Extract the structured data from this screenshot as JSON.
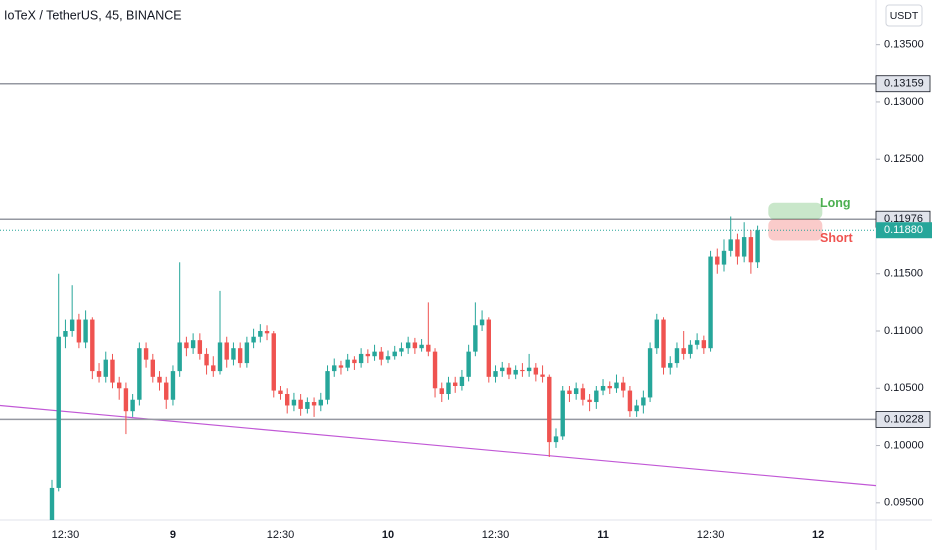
{
  "chart_data": {
    "type": "candlestick",
    "title": "IoTeX / TetherUS, 45, BINANCE",
    "currency": "USDT",
    "up_color": "#26a69a",
    "down_color": "#ef5350",
    "categories": [
      null,
      null,
      "12:30",
      null,
      null,
      null,
      null,
      null,
      null,
      null,
      null,
      null,
      null,
      null,
      null,
      null,
      null,
      null,
      "9",
      null,
      null,
      null,
      null,
      null,
      null,
      null,
      null,
      null,
      null,
      null,
      null,
      null,
      null,
      null,
      "12:30",
      null,
      null,
      null,
      null,
      null,
      null,
      null,
      null,
      null,
      null,
      null,
      null,
      null,
      null,
      null,
      "10",
      null,
      null,
      null,
      null,
      null,
      null,
      null,
      null,
      null,
      null,
      null,
      null,
      null,
      null,
      null,
      "12:30",
      null,
      null,
      null,
      null,
      null,
      null,
      null,
      null,
      null,
      null,
      null,
      null,
      null,
      null,
      null,
      "11",
      null,
      null,
      null,
      null,
      null,
      null,
      null,
      null,
      null,
      null,
      null,
      null,
      null,
      null,
      null,
      "12:30",
      null,
      null,
      null,
      null,
      null,
      null,
      null,
      null,
      null,
      null,
      null,
      null,
      null,
      null,
      null,
      "12",
      null,
      null,
      null,
      null,
      null,
      null,
      null,
      null
    ],
    "open": [
      0.0935,
      0.0963,
      0.1095,
      0.11,
      0.111,
      0.109,
      0.111,
      0.1065,
      0.106,
      0.1075,
      0.1055,
      0.105,
      0.103,
      0.104,
      0.1085,
      0.1075,
      0.106,
      0.1055,
      0.104,
      0.1065,
      0.109,
      0.1085,
      0.1092,
      0.108,
      0.107,
      0.1065,
      0.109,
      0.1075,
      0.1085,
      0.1072,
      0.109,
      0.1095,
      0.11,
      0.1098,
      0.1048,
      0.1045,
      0.1035,
      0.104,
      0.1032,
      0.1038,
      0.1035,
      0.104,
      0.1065,
      0.107,
      0.1068,
      0.1075,
      0.1072,
      0.108,
      0.1078,
      0.1082,
      0.1075,
      0.1078,
      0.1082,
      0.1085,
      0.109,
      0.1085,
      0.1088,
      0.1082,
      0.105,
      0.1045,
      0.1055,
      0.1052,
      0.106,
      0.1082,
      0.1105,
      0.111,
      0.106,
      0.1065,
      0.1068,
      0.1062,
      0.1066,
      0.1065,
      0.1068,
      0.1062,
      0.106,
      0.1003,
      0.1008,
      0.1048,
      0.1045,
      0.105,
      0.104,
      0.1038,
      0.1048,
      0.1052,
      0.105,
      0.1055,
      0.1048,
      0.103,
      0.1035,
      0.1042,
      0.1085,
      0.111,
      0.1068,
      0.1072,
      0.1085,
      0.108,
      0.1088,
      0.1092,
      0.1085,
      0.1165,
      0.1158,
      0.117,
      0.118,
      0.1165,
      0.1182,
      0.116,
      null,
      null,
      null,
      null,
      null,
      null,
      null,
      null,
      null,
      null,
      null,
      null,
      null,
      null,
      null,
      null,
      null
    ],
    "high": [
      0.097,
      0.115,
      0.111,
      0.114,
      0.1115,
      0.1118,
      0.1112,
      0.1072,
      0.1082,
      0.108,
      0.106,
      0.1055,
      0.1045,
      0.109,
      0.109,
      0.108,
      0.1065,
      0.106,
      0.107,
      0.116,
      0.1095,
      0.1098,
      0.1098,
      0.1085,
      0.1078,
      0.1135,
      0.1095,
      0.109,
      0.109,
      0.1095,
      0.1102,
      0.1106,
      0.1105,
      0.11,
      0.1052,
      0.105,
      0.1046,
      0.1045,
      0.1042,
      0.1042,
      0.1046,
      0.107,
      0.1076,
      0.1074,
      0.108,
      0.1078,
      0.1085,
      0.1084,
      0.1088,
      0.1086,
      0.1083,
      0.1087,
      0.109,
      0.1095,
      0.1094,
      0.1093,
      0.1125,
      0.1085,
      0.1055,
      0.106,
      0.106,
      0.1066,
      0.1088,
      0.1125,
      0.1118,
      0.1112,
      0.107,
      0.1073,
      0.1072,
      0.107,
      0.1072,
      0.108,
      0.1072,
      0.107,
      0.1062,
      0.1015,
      0.1052,
      0.1052,
      0.1055,
      0.1054,
      0.1045,
      0.1052,
      0.1058,
      0.1056,
      0.1062,
      0.106,
      0.1052,
      0.104,
      0.1048,
      0.109,
      0.1115,
      0.1112,
      0.1078,
      0.109,
      0.11,
      0.1092,
      0.1098,
      0.1096,
      0.117,
      0.1172,
      0.118,
      0.12,
      0.1185,
      0.1195,
      0.1188,
      0.1192,
      null,
      null,
      null,
      null,
      null,
      null,
      null,
      null,
      null,
      null,
      null,
      null,
      null,
      null,
      null,
      null,
      null
    ],
    "low": [
      0.0928,
      0.096,
      0.1085,
      0.1095,
      0.1085,
      0.1085,
      0.1058,
      0.1055,
      0.1055,
      0.105,
      0.104,
      0.101,
      0.1025,
      0.1035,
      0.1068,
      0.1055,
      0.1048,
      0.1032,
      0.1035,
      0.106,
      0.1078,
      0.108,
      0.1075,
      0.1062,
      0.106,
      0.1062,
      0.1068,
      0.107,
      0.1068,
      0.1068,
      0.1085,
      0.109,
      0.1092,
      0.1042,
      0.104,
      0.1028,
      0.103,
      0.1026,
      0.1028,
      0.1025,
      0.103,
      0.1036,
      0.106,
      0.1062,
      0.1065,
      0.1066,
      0.1068,
      0.1072,
      0.1074,
      0.107,
      0.1072,
      0.1075,
      0.1078,
      0.108,
      0.108,
      0.1082,
      0.1078,
      0.1042,
      0.1038,
      0.104,
      0.1046,
      0.1048,
      0.1056,
      0.1078,
      0.11,
      0.1055,
      0.1055,
      0.106,
      0.1058,
      0.1058,
      0.106,
      0.106,
      0.1056,
      0.1055,
      0.099,
      0.0998,
      0.1005,
      0.1038,
      0.104,
      0.1035,
      0.103,
      0.1032,
      0.1044,
      0.1045,
      0.1046,
      0.1042,
      0.1025,
      0.1025,
      0.1028,
      0.1038,
      0.108,
      0.1062,
      0.1062,
      0.1068,
      0.1075,
      0.1076,
      0.1084,
      0.108,
      0.1082,
      0.115,
      0.1152,
      0.1165,
      0.1158,
      0.116,
      0.115,
      0.1155,
      null,
      null,
      null,
      null,
      null,
      null,
      null,
      null,
      null,
      null,
      null,
      null,
      null,
      null,
      null,
      null,
      null
    ],
    "close": [
      0.0963,
      0.1095,
      0.11,
      0.111,
      0.109,
      0.111,
      0.1065,
      0.106,
      0.1075,
      0.1055,
      0.105,
      0.103,
      0.104,
      0.1085,
      0.1075,
      0.106,
      0.1055,
      0.104,
      0.1065,
      0.109,
      0.1085,
      0.1092,
      0.108,
      0.107,
      0.1065,
      0.109,
      0.1075,
      0.1085,
      0.1072,
      0.109,
      0.1095,
      0.11,
      0.1098,
      0.1048,
      0.1045,
      0.1035,
      0.104,
      0.1032,
      0.1038,
      0.1035,
      0.104,
      0.1065,
      0.107,
      0.1068,
      0.1075,
      0.1072,
      0.108,
      0.1078,
      0.1082,
      0.1075,
      0.1078,
      0.1082,
      0.1085,
      0.109,
      0.1085,
      0.1088,
      0.1082,
      0.105,
      0.1045,
      0.1055,
      0.1052,
      0.106,
      0.1082,
      0.1105,
      0.111,
      0.106,
      0.1065,
      0.1068,
      0.1062,
      0.1066,
      0.1065,
      0.1068,
      0.1062,
      0.106,
      0.1003,
      0.1008,
      0.1048,
      0.1045,
      0.105,
      0.104,
      0.1038,
      0.1048,
      0.1052,
      0.105,
      0.1055,
      0.1048,
      0.103,
      0.1035,
      0.1042,
      0.1085,
      0.111,
      0.1068,
      0.1072,
      0.1085,
      0.108,
      0.1088,
      0.1092,
      0.1085,
      0.1165,
      0.1158,
      0.117,
      0.118,
      0.1165,
      0.1182,
      0.116,
      0.1188,
      null,
      null,
      null,
      null,
      null,
      null,
      null,
      null,
      null,
      null,
      null,
      null,
      null,
      null,
      null,
      null,
      null
    ],
    "ylim": [
      0.0935,
      0.1389
    ],
    "yticks": [
      {
        "value": 0.095,
        "label": "0.09500"
      },
      {
        "value": 0.1,
        "label": "0.10000"
      },
      {
        "value": 0.105,
        "label": "0.10500"
      },
      {
        "value": 0.11,
        "label": "0.11000"
      },
      {
        "value": 0.115,
        "label": "0.11500"
      },
      {
        "value": 0.12,
        "label": "0.12000"
      },
      {
        "value": 0.125,
        "label": "0.12500"
      },
      {
        "value": 0.13,
        "label": "0.13000"
      },
      {
        "value": 0.135,
        "label": "0.13500"
      }
    ],
    "levels": [
      0.13159,
      0.11976,
      0.10228
    ],
    "last_price": {
      "value": 0.1188,
      "label": "0.11880"
    },
    "trendline": {
      "start": 0.1035,
      "end": 0.0965,
      "color": "#c158d6"
    },
    "position": {
      "entry": 0.11976,
      "target": 0.1212,
      "stop": 0.1179,
      "long_label": "Long",
      "short_label": "Short"
    }
  }
}
